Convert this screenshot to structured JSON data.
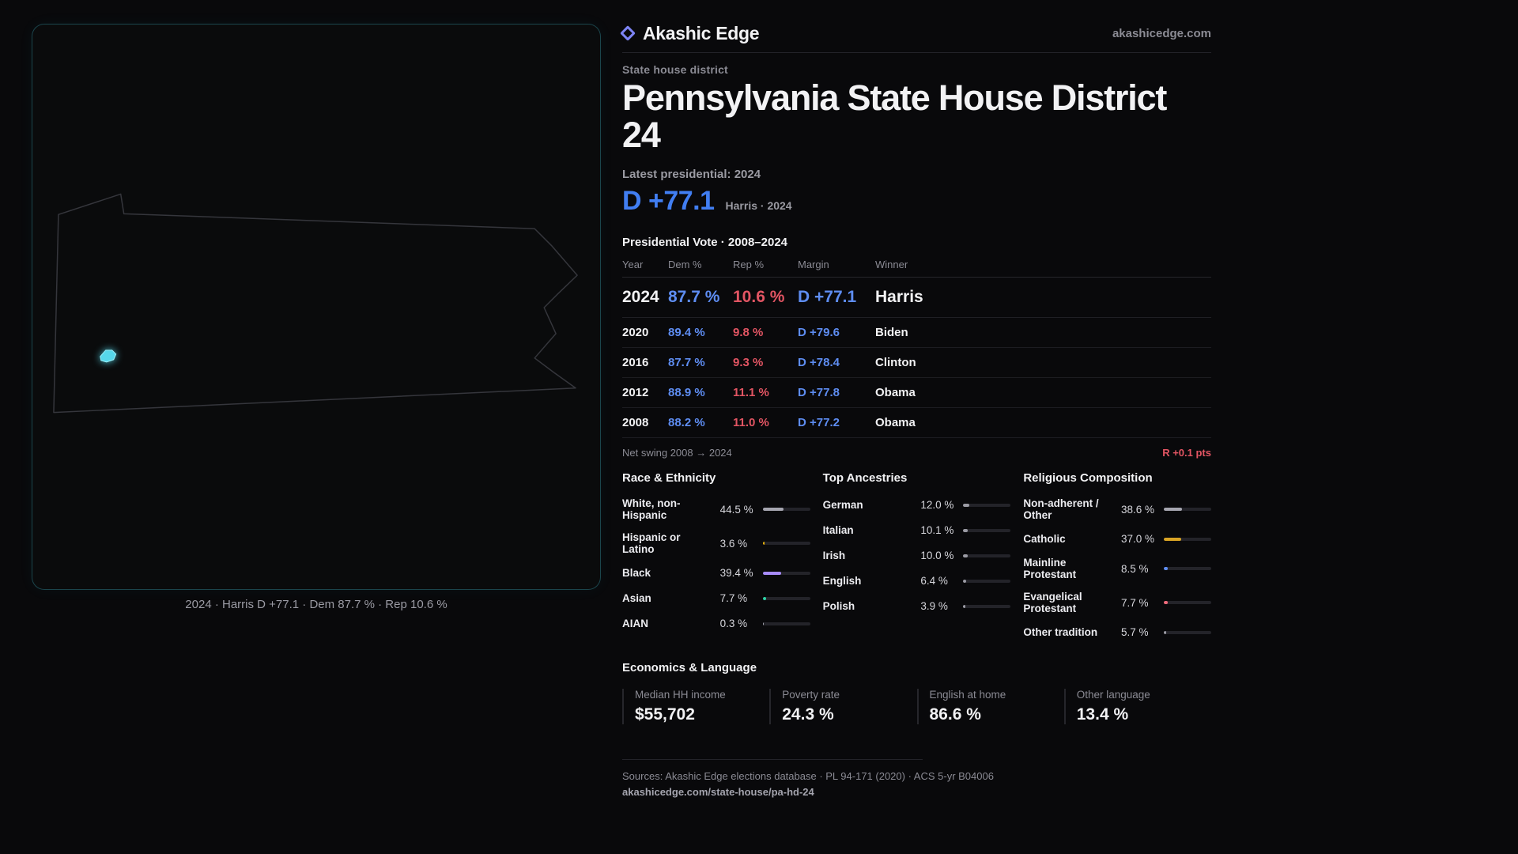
{
  "brand": {
    "name": "Akashic Edge",
    "domain": "akashicedge.com"
  },
  "map": {
    "caption": "2024 · Harris D +77.1 · Dem 87.7 % · Rep 10.6 %"
  },
  "header": {
    "kicker": "State house district",
    "title": "Pennsylvania State House District 24",
    "latest_label": "Latest presidential: 2024",
    "margin_big": "D +77.1",
    "margin_sub": "Harris · 2024"
  },
  "table": {
    "title": "Presidential Vote · 2008–2024",
    "columns": [
      "Year",
      "Dem %",
      "Rep %",
      "Margin",
      "Winner"
    ],
    "rows": [
      {
        "year": "2024",
        "dem": "87.7 %",
        "rep": "10.6 %",
        "margin": "D +77.1",
        "winner": "Harris"
      },
      {
        "year": "2020",
        "dem": "89.4 %",
        "rep": "9.8 %",
        "margin": "D +79.6",
        "winner": "Biden"
      },
      {
        "year": "2016",
        "dem": "87.7 %",
        "rep": "9.3 %",
        "margin": "D +78.4",
        "winner": "Clinton"
      },
      {
        "year": "2012",
        "dem": "88.9 %",
        "rep": "11.1 %",
        "margin": "D +77.8",
        "winner": "Obama"
      },
      {
        "year": "2008",
        "dem": "88.2 %",
        "rep": "11.0 %",
        "margin": "D +77.2",
        "winner": "Obama"
      }
    ],
    "net_swing_label": "Net swing 2008 → 2024",
    "net_swing_value": "R +0.1 pts"
  },
  "race": {
    "title": "Race & Ethnicity",
    "rows": [
      {
        "label": "White, non-Hispanic",
        "value": "44.5 %",
        "pct": 44.5,
        "color": "#a6a6b0"
      },
      {
        "label": "Hispanic or Latino",
        "value": "3.6 %",
        "pct": 3.6,
        "color": "#eab308"
      },
      {
        "label": "Black",
        "value": "39.4 %",
        "pct": 39.4,
        "color": "#a78bfa"
      },
      {
        "label": "Asian",
        "value": "7.7 %",
        "pct": 7.7,
        "color": "#2dd4a7"
      },
      {
        "label": "AIAN",
        "value": "0.3 %",
        "pct": 0.3,
        "color": "#a6a6b0"
      }
    ]
  },
  "ancestries": {
    "title": "Top Ancestries",
    "rows": [
      {
        "label": "German",
        "value": "12.0 %",
        "pct": 12.0,
        "color": "#9b9ba4"
      },
      {
        "label": "Italian",
        "value": "10.1 %",
        "pct": 10.1,
        "color": "#9b9ba4"
      },
      {
        "label": "Irish",
        "value": "10.0 %",
        "pct": 10.0,
        "color": "#9b9ba4"
      },
      {
        "label": "English",
        "value": "6.4 %",
        "pct": 6.4,
        "color": "#9b9ba4"
      },
      {
        "label": "Polish",
        "value": "3.9 %",
        "pct": 3.9,
        "color": "#9b9ba4"
      }
    ]
  },
  "religion": {
    "title": "Religious Composition",
    "rows": [
      {
        "label": "Non-adherent / Other",
        "value": "38.6 %",
        "pct": 38.6,
        "color": "#a6a6b0"
      },
      {
        "label": "Catholic",
        "value": "37.0 %",
        "pct": 37.0,
        "color": "#d9a425"
      },
      {
        "label": "Mainline Protestant",
        "value": "8.5 %",
        "pct": 8.5,
        "color": "#5e8df2"
      },
      {
        "label": "Evangelical Protestant",
        "value": "7.7 %",
        "pct": 7.7,
        "color": "#ef6a7a"
      },
      {
        "label": "Other tradition",
        "value": "5.7 %",
        "pct": 5.7,
        "color": "#9b9ba4"
      }
    ]
  },
  "economics": {
    "title": "Economics & Language",
    "stats": [
      {
        "label": "Median HH income",
        "value": "$55,702"
      },
      {
        "label": "Poverty rate",
        "value": "24.3 %"
      },
      {
        "label": "English at home",
        "value": "86.6 %"
      },
      {
        "label": "Other language",
        "value": "13.4 %"
      }
    ]
  },
  "footer": {
    "sources": "Sources: Akashic Edge elections database · PL 94-171 (2020) · ACS 5-yr B04006",
    "url": "akashicedge.com/state-house/pa-hd-24"
  },
  "colors": {
    "dem": "#5e8df2",
    "rep": "#e25563",
    "accent": "#417ef2",
    "district": "#56d7ea"
  },
  "chart_data": [
    {
      "type": "table",
      "title": "Presidential Vote · 2008–2024",
      "columns": [
        "Year",
        "Dem %",
        "Rep %",
        "Margin",
        "Winner"
      ],
      "rows": [
        [
          "2024",
          87.7,
          10.6,
          "D +77.1",
          "Harris"
        ],
        [
          "2020",
          89.4,
          9.8,
          "D +79.6",
          "Biden"
        ],
        [
          "2016",
          87.7,
          9.3,
          "D +78.4",
          "Clinton"
        ],
        [
          "2012",
          88.9,
          11.1,
          "D +77.8",
          "Obama"
        ],
        [
          "2008",
          88.2,
          11.0,
          "D +77.2",
          "Obama"
        ]
      ],
      "note": "Net swing 2008 → 2024: R +0.1 pts"
    },
    {
      "type": "bar",
      "title": "Race & Ethnicity",
      "categories": [
        "White, non-Hispanic",
        "Hispanic or Latino",
        "Black",
        "Asian",
        "AIAN"
      ],
      "values": [
        44.5,
        3.6,
        39.4,
        7.7,
        0.3
      ],
      "xlabel": "",
      "ylabel": "%",
      "ylim": [
        0,
        100
      ]
    },
    {
      "type": "bar",
      "title": "Top Ancestries",
      "categories": [
        "German",
        "Italian",
        "Irish",
        "English",
        "Polish"
      ],
      "values": [
        12.0,
        10.1,
        10.0,
        6.4,
        3.9
      ],
      "xlabel": "",
      "ylabel": "%",
      "ylim": [
        0,
        100
      ]
    },
    {
      "type": "bar",
      "title": "Religious Composition",
      "categories": [
        "Non-adherent / Other",
        "Catholic",
        "Mainline Protestant",
        "Evangelical Protestant",
        "Other tradition"
      ],
      "values": [
        38.6,
        37.0,
        8.5,
        7.7,
        5.7
      ],
      "xlabel": "",
      "ylabel": "%",
      "ylim": [
        0,
        100
      ]
    },
    {
      "type": "table",
      "title": "Economics & Language",
      "columns": [
        "Median HH income",
        "Poverty rate",
        "English at home",
        "Other language"
      ],
      "rows": [
        [
          "$55,702",
          "24.3 %",
          "86.6 %",
          "13.4 %"
        ]
      ]
    }
  ]
}
